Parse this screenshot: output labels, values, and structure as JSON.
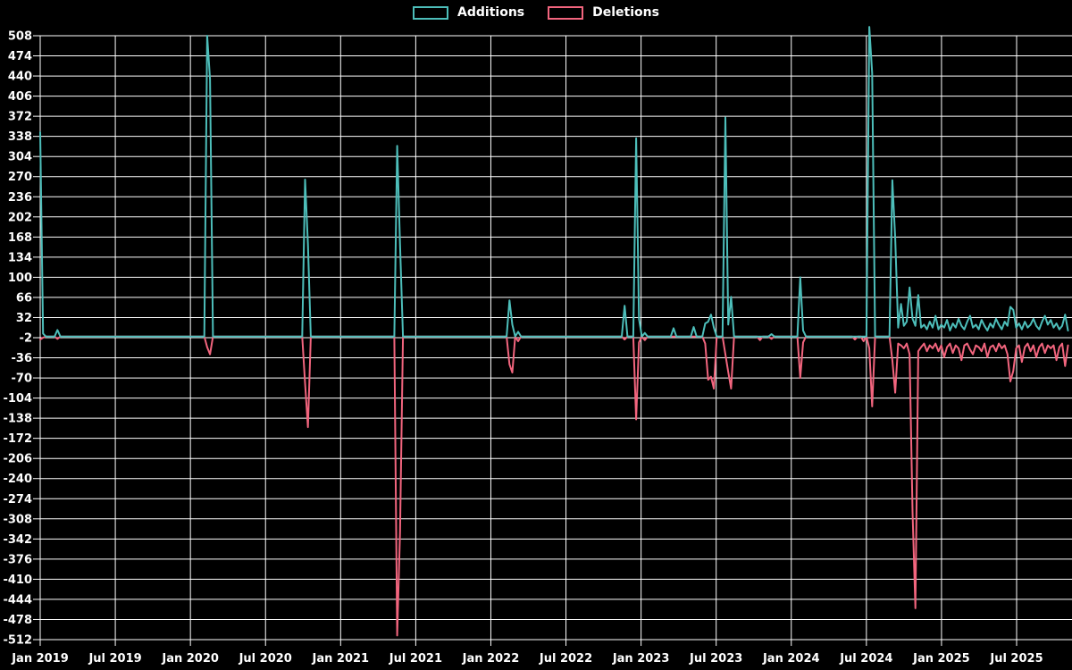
{
  "colors": {
    "background": "#000000",
    "grid": "#ffffff",
    "text": "#ffffff",
    "additions": "#4dbeba",
    "deletions": "#f2657e"
  },
  "chart_data": {
    "type": "line",
    "title": "",
    "grid": true,
    "background": "#000000",
    "legend": {
      "position": "top-center"
    },
    "x_axis": {
      "tick_labels": [
        "Jan 2019",
        "Jul 2019",
        "Jan 2020",
        "Jul 2020",
        "Jan 2021",
        "Jul 2021",
        "Jan 2022",
        "Jul 2022",
        "Jan 2023",
        "Jul 2023",
        "Jan 2024",
        "Jul 2024",
        "Jan 2025",
        "Jul 2025"
      ],
      "tick_interval": "6 months",
      "start": "Jan 2019"
    },
    "y_axis": {
      "tick_labels": [
        508,
        474,
        440,
        406,
        372,
        338,
        304,
        270,
        236,
        202,
        168,
        134,
        100,
        66,
        32,
        -2,
        -36,
        -70,
        -104,
        -138,
        -172,
        -206,
        -240,
        -274,
        -308,
        -342,
        -376,
        -410,
        -444,
        -478,
        -512
      ],
      "min": -512,
      "max": 508,
      "step": 34
    },
    "series": [
      {
        "name": "Additions",
        "color": "#4dbeba"
      },
      {
        "name": "Deletions",
        "color": "#f2657e"
      }
    ],
    "weeks_total": 358,
    "baseline_value": 0,
    "nonzero_weeks_format": [
      "week_index",
      "additions",
      "deletions"
    ],
    "nonzero_weeks": [
      [
        0,
        345,
        -5
      ],
      [
        1,
        5,
        -2
      ],
      [
        6,
        11,
        -4
      ],
      [
        58,
        508,
        -18
      ],
      [
        59,
        435,
        -30
      ],
      [
        92,
        265,
        -79
      ],
      [
        93,
        156,
        -153
      ],
      [
        124,
        322,
        -505
      ],
      [
        125,
        155,
        -330
      ],
      [
        163,
        61,
        -47
      ],
      [
        164,
        20,
        -61
      ],
      [
        166,
        8,
        -8
      ],
      [
        203,
        52,
        -5
      ],
      [
        207,
        335,
        -140
      ],
      [
        208,
        30,
        -10
      ],
      [
        210,
        6,
        -6
      ],
      [
        220,
        14,
        0
      ],
      [
        227,
        16,
        0
      ],
      [
        231,
        22,
        -12
      ],
      [
        232,
        25,
        -73
      ],
      [
        233,
        37,
        -68
      ],
      [
        234,
        15,
        -88
      ],
      [
        238,
        370,
        -30
      ],
      [
        239,
        20,
        -60
      ],
      [
        240,
        67,
        -88
      ],
      [
        250,
        0,
        -6
      ],
      [
        254,
        4,
        -4
      ],
      [
        264,
        100,
        -70
      ],
      [
        265,
        10,
        -10
      ],
      [
        283,
        0,
        -5
      ],
      [
        286,
        0,
        -8
      ],
      [
        288,
        523,
        -20
      ],
      [
        289,
        445,
        -118
      ],
      [
        296,
        264,
        -40
      ],
      [
        297,
        166,
        -95
      ],
      [
        298,
        15,
        -12
      ],
      [
        299,
        55,
        -15
      ],
      [
        300,
        18,
        -20
      ],
      [
        301,
        25,
        -12
      ],
      [
        302,
        83,
        -30
      ],
      [
        303,
        30,
        -296
      ],
      [
        304,
        18,
        -459
      ],
      [
        305,
        70,
        -25
      ],
      [
        306,
        15,
        -18
      ],
      [
        307,
        20,
        -12
      ],
      [
        308,
        12,
        -25
      ],
      [
        309,
        25,
        -15
      ],
      [
        310,
        15,
        -20
      ],
      [
        311,
        35,
        -12
      ],
      [
        312,
        12,
        -25
      ],
      [
        313,
        20,
        -15
      ],
      [
        314,
        15,
        -35
      ],
      [
        315,
        28,
        -18
      ],
      [
        316,
        10,
        -12
      ],
      [
        317,
        22,
        -28
      ],
      [
        318,
        15,
        -15
      ],
      [
        319,
        30,
        -20
      ],
      [
        320,
        18,
        -40
      ],
      [
        321,
        12,
        -15
      ],
      [
        322,
        25,
        -12
      ],
      [
        323,
        35,
        -22
      ],
      [
        324,
        15,
        -30
      ],
      [
        325,
        20,
        -15
      ],
      [
        326,
        12,
        -18
      ],
      [
        327,
        28,
        -25
      ],
      [
        328,
        18,
        -12
      ],
      [
        329,
        10,
        -35
      ],
      [
        330,
        22,
        -18
      ],
      [
        331,
        15,
        -15
      ],
      [
        332,
        30,
        -25
      ],
      [
        333,
        20,
        -12
      ],
      [
        334,
        12,
        -20
      ],
      [
        335,
        25,
        -15
      ],
      [
        336,
        18,
        -30
      ],
      [
        337,
        50,
        -76
      ],
      [
        338,
        45,
        -58
      ],
      [
        339,
        15,
        -20
      ],
      [
        340,
        22,
        -15
      ],
      [
        341,
        12,
        -43
      ],
      [
        342,
        25,
        -18
      ],
      [
        343,
        15,
        -12
      ],
      [
        344,
        20,
        -25
      ],
      [
        345,
        30,
        -15
      ],
      [
        346,
        18,
        -35
      ],
      [
        347,
        12,
        -18
      ],
      [
        348,
        25,
        -12
      ],
      [
        349,
        35,
        -28
      ],
      [
        350,
        20,
        -15
      ],
      [
        351,
        28,
        -20
      ],
      [
        352,
        15,
        -15
      ],
      [
        353,
        22,
        -40
      ],
      [
        354,
        12,
        -18
      ],
      [
        355,
        18,
        -12
      ],
      [
        356,
        37,
        -50
      ],
      [
        357,
        10,
        -15
      ]
    ]
  }
}
